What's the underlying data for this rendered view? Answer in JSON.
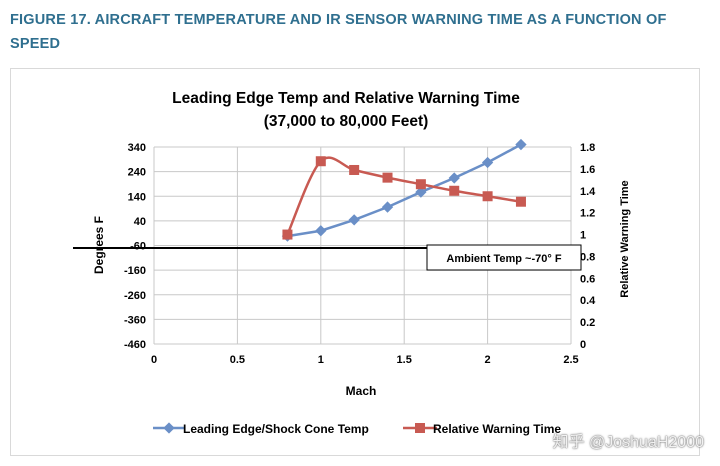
{
  "caption": "FIGURE 17. AIRCRAFT TEMPERATURE AND IR SENSOR WARNING TIME AS A FUNCTION OF SPEED",
  "watermark": "知乎 @JoshuaH2000",
  "colors": {
    "caption": "#2f6f8f",
    "series_temp": "#6a8fc7",
    "series_warning": "#c85a52",
    "grid": "#c8c8c8",
    "ambient_line": "#000000"
  },
  "chart_data": {
    "type": "line",
    "title": "Leading Edge Temp and Relative Warning Time",
    "subtitle": "(37,000 to 80,000 Feet)",
    "xlabel": "Mach",
    "ylabel_left": "Degrees F",
    "ylabel_right": "Relative Warning Time",
    "xlim": [
      0,
      2.5
    ],
    "ylim_left": [
      -460,
      340
    ],
    "ylim_right": [
      0,
      1.8
    ],
    "x_ticks": [
      "0",
      "0.5",
      "1",
      "1.5",
      "2",
      "2.5"
    ],
    "y_left_ticks": [
      "340",
      "240",
      "140",
      "40",
      "-60",
      "-160",
      "-260",
      "-360",
      "-460"
    ],
    "y_right_ticks": [
      "1.8",
      "1.6",
      "1.4",
      "1.2",
      "1",
      "0.8",
      "0.6",
      "0.4",
      "0.2",
      "0"
    ],
    "grid": true,
    "legend_position": "bottom",
    "series": [
      {
        "name": "Leading Edge/Shock Cone Temp",
        "axis": "left",
        "marker": "diamond",
        "x": [
          0.8,
          1.0,
          1.2,
          1.4,
          1.6,
          1.8,
          2.0,
          2.2
        ],
        "y": [
          -22,
          0,
          44,
          96,
          157,
          214,
          277,
          350
        ]
      },
      {
        "name": "Relative Warning Time",
        "axis": "right",
        "marker": "square",
        "x": [
          0.8,
          1.0,
          1.2,
          1.4,
          1.6,
          1.8,
          2.0,
          2.2
        ],
        "y": [
          1.0,
          1.67,
          1.59,
          1.52,
          1.46,
          1.4,
          1.35,
          1.3
        ]
      }
    ],
    "annotation": {
      "label": "Ambient Temp ~-70° F",
      "y": -70,
      "axis": "left"
    }
  }
}
